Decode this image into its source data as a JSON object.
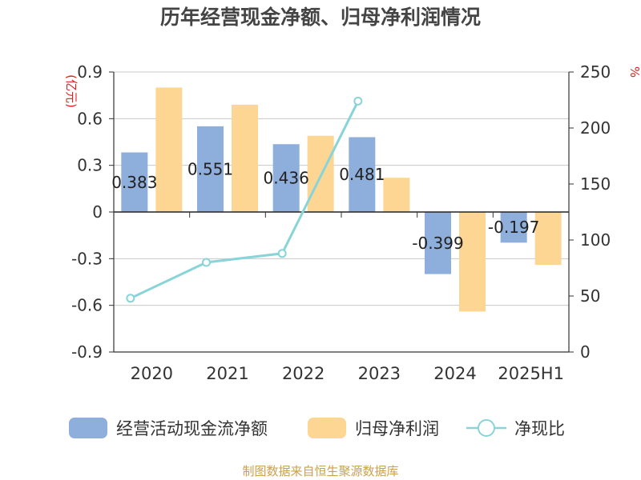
{
  "chart_data": {
    "type": "bar",
    "title": "历年经营现金净额、归母净利润情况",
    "categories": [
      "2020",
      "2021",
      "2022",
      "2023",
      "2024",
      "2025H1"
    ],
    "series": [
      {
        "name": "经营活动现金流净额",
        "type": "bar",
        "color": "#8eaedb",
        "values": [
          0.383,
          0.551,
          0.436,
          0.481,
          -0.399,
          -0.197
        ],
        "value_labels": [
          "0.383",
          "0.551",
          "0.436",
          "0.481",
          "-0.399",
          "-0.197"
        ]
      },
      {
        "name": "归母净利润",
        "type": "bar",
        "color": "#fdd694",
        "values": [
          0.8,
          0.69,
          0.49,
          0.22,
          -0.64,
          -0.34
        ]
      },
      {
        "name": "净现比",
        "type": "line",
        "axis": "right",
        "color": "#88d4d8",
        "values": [
          48,
          80,
          88,
          224,
          null,
          null
        ]
      }
    ],
    "y_left": {
      "unit_label": "(亿元)",
      "ylim": [
        -0.9,
        0.9
      ],
      "ticks": [
        0.9,
        0.6,
        0.3,
        0,
        -0.3,
        -0.6,
        -0.9
      ],
      "tick_labels": [
        "0.9",
        "0.6",
        "0.3",
        "0",
        "-0.3",
        "-0.6",
        "-0.9"
      ]
    },
    "y_right": {
      "unit_label": "%",
      "ylim": [
        0,
        250
      ],
      "ticks": [
        250,
        200,
        150,
        100,
        50,
        0
      ],
      "tick_labels": [
        "250",
        "200",
        "150",
        "100",
        "50",
        "0"
      ]
    },
    "grid": true,
    "legend_position": "bottom",
    "source": "制图数据来自恒生聚源数据库"
  }
}
